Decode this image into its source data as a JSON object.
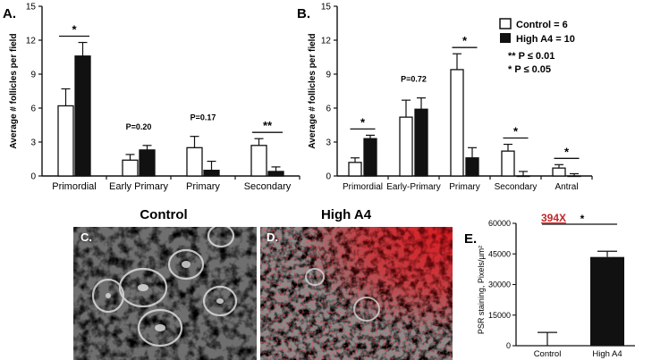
{
  "chart_data": [
    {
      "panel": "A.",
      "type": "bar",
      "ylabel": "Average # follicles per field",
      "ylim": [
        0,
        15
      ],
      "yticks": [
        "0",
        "3",
        "6",
        "9",
        "12",
        "15"
      ],
      "categories": [
        "Primordial",
        "Early Primary",
        "Primary",
        "Secondary"
      ],
      "series": [
        {
          "values": [
            6.2,
            1.4,
            2.5,
            2.7
          ],
          "errors": [
            1.5,
            0.5,
            1.0,
            0.6
          ],
          "fill": "#ffffff"
        },
        {
          "values": [
            10.6,
            2.3,
            0.5,
            0.4
          ],
          "errors": [
            1.2,
            0.4,
            0.8,
            0.4
          ],
          "fill": "#111111"
        }
      ],
      "annotations": [
        {
          "category": 0,
          "text": "*",
          "bracket": true
        },
        {
          "category": 1,
          "text": "P=0.20",
          "bracket": false
        },
        {
          "category": 2,
          "text": "P=0.17",
          "bracket": false
        },
        {
          "category": 3,
          "text": "**",
          "bracket": true
        }
      ]
    },
    {
      "panel": "B.",
      "type": "bar",
      "ylabel": "Average # follicles per field",
      "ylim": [
        0,
        15
      ],
      "yticks": [
        "0",
        "3",
        "6",
        "9",
        "12",
        "15"
      ],
      "categories": [
        "Primordial",
        "Early-Primary",
        "Primary",
        "Secondary",
        "Antral"
      ],
      "series": [
        {
          "name": "Control = 6",
          "values": [
            1.2,
            5.2,
            9.4,
            2.2,
            0.7
          ],
          "errors": [
            0.4,
            1.5,
            1.4,
            0.6,
            0.3
          ],
          "fill": "#ffffff"
        },
        {
          "name": "High  A4 = 10",
          "values": [
            3.3,
            5.9,
            1.6,
            0.0,
            0.0
          ],
          "errors": [
            0.3,
            1.0,
            0.9,
            0.4,
            0.2
          ],
          "fill": "#111111"
        }
      ],
      "annotations": [
        {
          "category": 0,
          "text": "*",
          "bracket": true
        },
        {
          "category": 1,
          "text": "P=0.72",
          "bracket": false
        },
        {
          "category": 2,
          "text": "*",
          "bracket": true
        },
        {
          "category": 3,
          "text": "*",
          "bracket": true
        },
        {
          "category": 4,
          "text": "*",
          "bracket": true
        }
      ],
      "legend_position": "top-right",
      "notes": [
        "** P ≤ 0.01",
        "* P ≤ 0.05"
      ]
    },
    {
      "panel": "E.",
      "type": "bar",
      "ylabel": "PSR staining, Pixels/µm²",
      "ylim": [
        0,
        60000
      ],
      "yticks": [
        "0",
        "15000",
        "30000",
        "45000",
        "60000"
      ],
      "categories": [
        "Control",
        "High A4"
      ],
      "series": [
        {
          "values": [
            0,
            43500
          ],
          "errors": [
            6500,
            2800
          ],
          "fills": [
            "#ffffff",
            "#111111"
          ]
        }
      ],
      "annotations": [
        {
          "text": "*",
          "bracket": true
        }
      ],
      "magnification": "394X"
    }
  ],
  "images": {
    "control": {
      "label": "C.",
      "title": "Control"
    },
    "high_a4": {
      "label": "D.",
      "title": "High A4"
    }
  },
  "colors": {
    "stain_red": "#e0141b",
    "magnification_red": "#c0282b",
    "bar_black": "#111111"
  }
}
